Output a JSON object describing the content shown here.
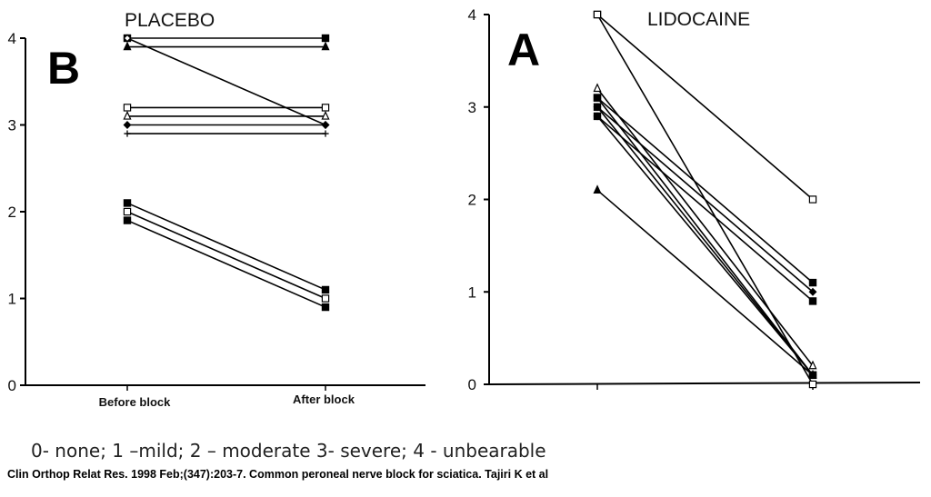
{
  "chart_data": [
    {
      "type": "line",
      "title": "PLACEBO",
      "panel_label": "B",
      "categories": [
        "Before block",
        "After block"
      ],
      "ylim": [
        0,
        4
      ],
      "yticks": [
        0,
        1,
        2,
        3,
        4
      ],
      "grid": false,
      "series": [
        {
          "marker": "square-filled",
          "values": [
            4.0,
            4.0
          ]
        },
        {
          "marker": "triangle-filled",
          "values": [
            3.9,
            3.9
          ]
        },
        {
          "marker": "diamond-open",
          "values": [
            4.0,
            3.0
          ]
        },
        {
          "marker": "square-open",
          "values": [
            3.2,
            3.2
          ]
        },
        {
          "marker": "triangle-open",
          "values": [
            3.1,
            3.1
          ]
        },
        {
          "marker": "diamond-filled",
          "values": [
            3.0,
            3.0
          ]
        },
        {
          "marker": "plus",
          "values": [
            2.9,
            2.9
          ]
        },
        {
          "marker": "square-filled",
          "values": [
            2.1,
            1.1
          ]
        },
        {
          "marker": "square-open",
          "values": [
            2.0,
            1.0
          ]
        },
        {
          "marker": "square-filled",
          "values": [
            1.9,
            0.9
          ]
        }
      ]
    },
    {
      "type": "line",
      "title": "LIDOCAINE",
      "panel_label": "A",
      "categories": [
        "",
        ""
      ],
      "ylim": [
        0,
        4
      ],
      "yticks": [
        0,
        1,
        2,
        3,
        4
      ],
      "grid": false,
      "series": [
        {
          "marker": "square-open",
          "values": [
            4.0,
            2.0
          ]
        },
        {
          "marker": "square-open",
          "values": [
            4.0,
            0.0
          ]
        },
        {
          "marker": "triangle-open",
          "values": [
            3.2,
            0.2
          ]
        },
        {
          "marker": "square-filled",
          "values": [
            3.1,
            1.1
          ]
        },
        {
          "marker": "diamond-filled",
          "values": [
            3.0,
            1.0
          ]
        },
        {
          "marker": "square-filled",
          "values": [
            2.9,
            0.9
          ]
        },
        {
          "marker": "square-filled",
          "values": [
            3.1,
            0.1
          ]
        },
        {
          "marker": "square-filled",
          "values": [
            3.0,
            0.1
          ]
        },
        {
          "marker": "diamond-filled",
          "values": [
            2.9,
            0.1
          ]
        },
        {
          "marker": "triangle-filled",
          "values": [
            2.1,
            0.1
          ]
        }
      ]
    }
  ],
  "scale_text": "0- none; 1 –mild; 2 – moderate 3- severe; 4 - unbearable",
  "citation": "Clin Orthop Relat Res. 1998 Feb;(347):203-7.  Common peroneal nerve block for sciatica. Tajiri K et al"
}
